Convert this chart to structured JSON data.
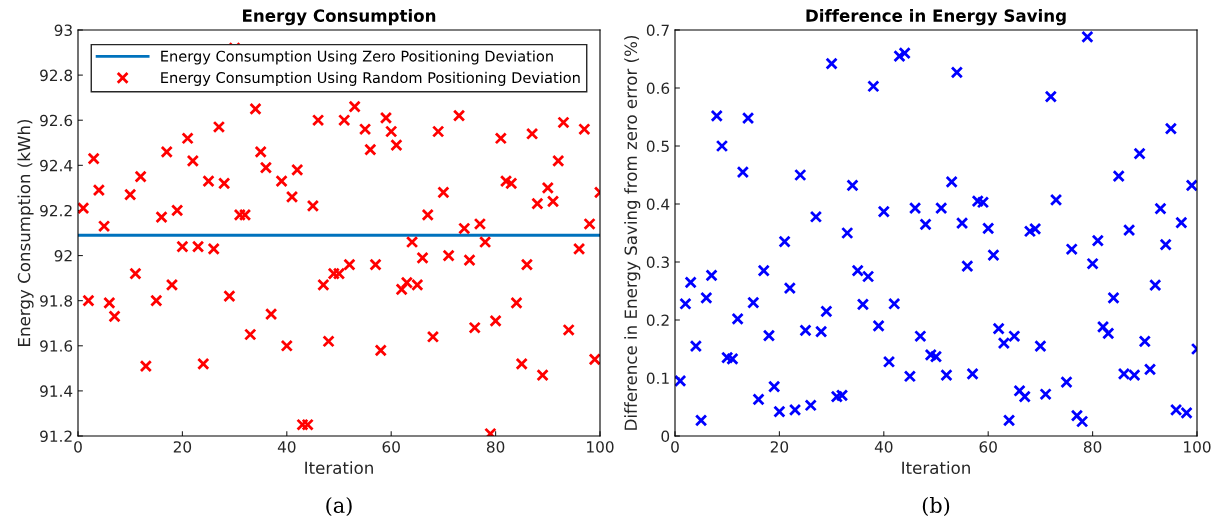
{
  "chart_data": [
    {
      "type": "scatter",
      "title": "Energy Consumption",
      "xlabel": "Iteration",
      "ylabel": "Energy Consumption (kWh)",
      "annotations": [
        "(a)"
      ],
      "xlim": [
        0,
        100
      ],
      "xticks": [
        0,
        20,
        40,
        60,
        80,
        100
      ],
      "ylim": [
        91.2,
        93
      ],
      "yticks": [
        91.2,
        91.4,
        91.6,
        91.8,
        92,
        92.2,
        92.4,
        92.6,
        92.8,
        93
      ],
      "grid": false,
      "legend": "top",
      "series": [
        {
          "type": "line",
          "name": "Energy Consumption Using Zero Positioning Deviation",
          "color": "#0072bd",
          "x": [
            0,
            100
          ],
          "values": [
            92.09,
            92.09
          ]
        },
        {
          "name": "Energy Consumption Using Random Positioning Deviation",
          "color": "#ff0000",
          "marker": "cross",
          "x": [
            1,
            2,
            3,
            4,
            5,
            6,
            7,
            10,
            11,
            12,
            13,
            15,
            16,
            17,
            18,
            19,
            20,
            21,
            22,
            23,
            24,
            25,
            26,
            27,
            28,
            29,
            30,
            31,
            32,
            33,
            34,
            35,
            36,
            37,
            39,
            40,
            41,
            42,
            43,
            44,
            45,
            46,
            47,
            48,
            49,
            50,
            51,
            52,
            53,
            55,
            56,
            57,
            58,
            59,
            60,
            61,
            62,
            63,
            64,
            65,
            66,
            67,
            68,
            69,
            70,
            71,
            73,
            74,
            75,
            76,
            77,
            78,
            79,
            80,
            81,
            82,
            83,
            84,
            85,
            86,
            87,
            88,
            89,
            90,
            91,
            92,
            93,
            94,
            96,
            97,
            98,
            99,
            100
          ],
          "values": [
            92.21,
            91.8,
            92.43,
            92.29,
            92.13,
            91.79,
            91.73,
            92.27,
            91.92,
            92.35,
            91.51,
            91.8,
            92.17,
            92.46,
            91.87,
            92.2,
            92.04,
            92.52,
            92.42,
            92.04,
            91.52,
            92.33,
            92.03,
            92.57,
            92.32,
            91.82,
            92.92,
            92.18,
            92.18,
            91.65,
            92.65,
            92.46,
            92.39,
            91.74,
            92.33,
            91.6,
            92.26,
            92.38,
            91.25,
            91.25,
            92.22,
            92.6,
            91.87,
            91.62,
            91.92,
            91.92,
            92.6,
            91.96,
            92.66,
            92.56,
            92.47,
            91.96,
            91.58,
            92.61,
            92.55,
            92.49,
            91.85,
            91.88,
            92.06,
            91.87,
            91.99,
            92.18,
            91.64,
            92.55,
            92.28,
            92.0,
            92.62,
            92.12,
            91.98,
            91.68,
            92.14,
            92.06,
            91.21,
            91.71,
            92.52,
            92.33,
            92.32,
            91.79,
            91.52,
            91.96,
            92.54,
            92.23,
            91.47,
            92.3,
            92.24,
            92.42,
            92.59,
            91.67,
            92.03,
            92.56,
            92.14,
            91.54,
            92.28
          ]
        }
      ]
    },
    {
      "type": "scatter",
      "title": "Difference in Energy Saving",
      "xlabel": "Iteration",
      "ylabel": "Difference in Energy Saving from zero error (%)",
      "annotations": [
        "(b)"
      ],
      "xlim": [
        0,
        100
      ],
      "xticks": [
        0,
        20,
        40,
        60,
        80,
        100
      ],
      "ylim": [
        0,
        0.7
      ],
      "yticks": [
        0,
        0.1,
        0.2,
        0.3,
        0.4,
        0.5,
        0.6,
        0.7
      ],
      "grid": false,
      "legend": false,
      "series": [
        {
          "color": "#0000ff",
          "marker": "cross",
          "x": [
            1,
            2,
            3,
            4,
            5,
            6,
            7,
            8,
            9,
            10,
            11,
            12,
            13,
            14,
            15,
            16,
            17,
            18,
            19,
            20,
            21,
            22,
            23,
            24,
            25,
            26,
            27,
            28,
            29,
            30,
            31,
            32,
            33,
            34,
            35,
            36,
            37,
            38,
            39,
            40,
            41,
            42,
            43,
            44,
            45,
            46,
            47,
            48,
            49,
            50,
            51,
            52,
            53,
            54,
            55,
            56,
            57,
            58,
            59,
            60,
            61,
            62,
            63,
            64,
            65,
            66,
            67,
            68,
            69,
            70,
            71,
            72,
            73,
            75,
            76,
            77,
            78,
            79,
            80,
            81,
            82,
            83,
            84,
            85,
            86,
            87,
            88,
            89,
            90,
            91,
            92,
            93,
            94,
            95,
            96,
            97,
            98,
            99,
            100
          ],
          "values": [
            0.095,
            0.228,
            0.265,
            0.155,
            0.027,
            0.238,
            0.277,
            0.552,
            0.5,
            0.135,
            0.133,
            0.202,
            0.455,
            0.548,
            0.23,
            0.063,
            0.285,
            0.173,
            0.085,
            0.042,
            0.335,
            0.255,
            0.045,
            0.45,
            0.182,
            0.053,
            0.378,
            0.18,
            0.215,
            0.642,
            0.068,
            0.07,
            0.35,
            0.432,
            0.285,
            0.227,
            0.275,
            0.603,
            0.19,
            0.387,
            0.128,
            0.228,
            0.655,
            0.66,
            0.103,
            0.393,
            0.172,
            0.365,
            0.14,
            0.137,
            0.393,
            0.105,
            0.438,
            0.627,
            0.367,
            0.293,
            0.107,
            0.405,
            0.403,
            0.358,
            0.312,
            0.185,
            0.16,
            0.027,
            0.172,
            0.078,
            0.068,
            0.353,
            0.357,
            0.155,
            0.072,
            0.585,
            0.407,
            0.093,
            0.322,
            0.035,
            0.025,
            0.688,
            0.297,
            0.337,
            0.188,
            0.177,
            0.238,
            0.448,
            0.107,
            0.355,
            0.105,
            0.487,
            0.163,
            0.115,
            0.26,
            0.392,
            0.33,
            0.53,
            0.045,
            0.368,
            0.04,
            0.432,
            0.15
          ]
        }
      ]
    }
  ]
}
